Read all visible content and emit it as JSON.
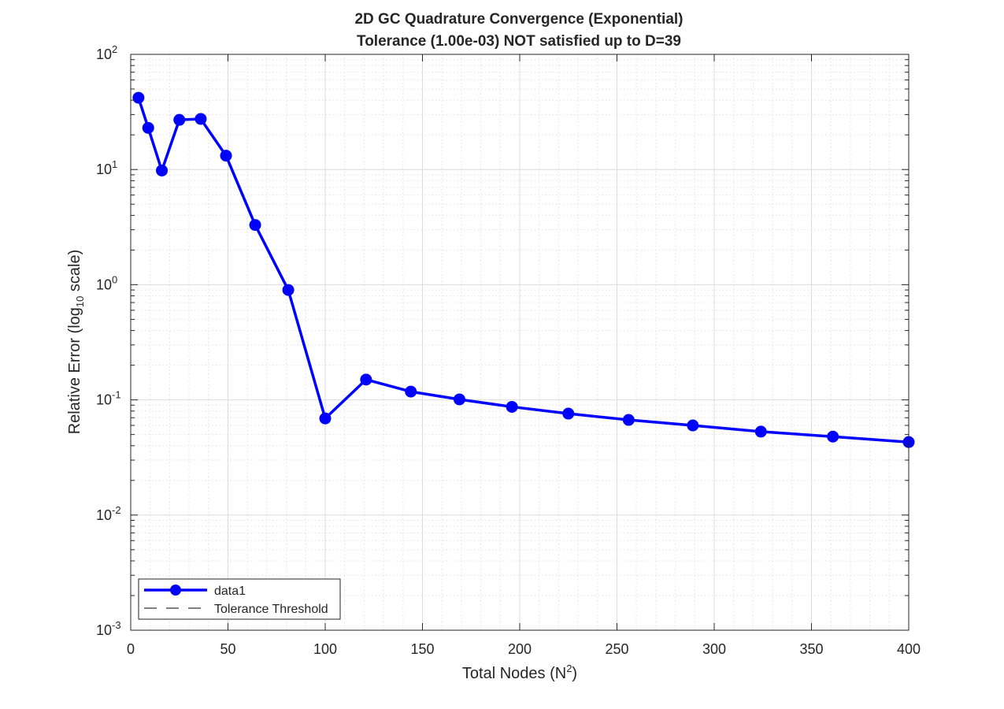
{
  "chart_data": {
    "type": "line",
    "title": [
      "2D GC Quadrature Convergence (Exponential)",
      "Tolerance (1.00e-03) NOT satisfied up to D=39"
    ],
    "xlabel": {
      "text": "Total  Nodes  (N",
      "sup": "2",
      "suffix": ")"
    },
    "ylabel": {
      "text": "Relative  Error  (log",
      "sub": "10",
      "suffix": "  scale)"
    },
    "xlim": [
      0,
      400
    ],
    "ylim": [
      0.001,
      100
    ],
    "yscale": "log",
    "xticks": [
      0,
      50,
      100,
      150,
      200,
      250,
      300,
      350,
      400
    ],
    "yticks": [
      {
        "value": 0.001,
        "base": "10",
        "exp": "-3"
      },
      {
        "value": 0.01,
        "base": "10",
        "exp": "-2"
      },
      {
        "value": 0.1,
        "base": "10",
        "exp": "-1"
      },
      {
        "value": 1,
        "base": "10",
        "exp": "0"
      },
      {
        "value": 10,
        "base": "10",
        "exp": "1"
      },
      {
        "value": 100,
        "base": "10",
        "exp": "2"
      }
    ],
    "grid": true,
    "minor_grid": true,
    "legend_position": "bottom-left",
    "series": [
      {
        "name": "data1",
        "color": "#0000ff",
        "style": "solid-line-with-circle-markers",
        "x": [
          4,
          9,
          16,
          25,
          36,
          49,
          64,
          81,
          100,
          121,
          144,
          169,
          196,
          225,
          256,
          289,
          324,
          361,
          400
        ],
        "y": [
          42,
          23,
          9.8,
          27,
          27.5,
          13.2,
          3.3,
          0.9,
          0.069,
          0.15,
          0.118,
          0.101,
          0.087,
          0.076,
          0.067,
          0.06,
          0.053,
          0.048,
          0.043
        ]
      },
      {
        "name": "Tolerance Threshold",
        "color": "#000000",
        "style": "dashed",
        "x": [
          0,
          400
        ],
        "y": [
          0.001,
          0.001
        ]
      }
    ]
  }
}
